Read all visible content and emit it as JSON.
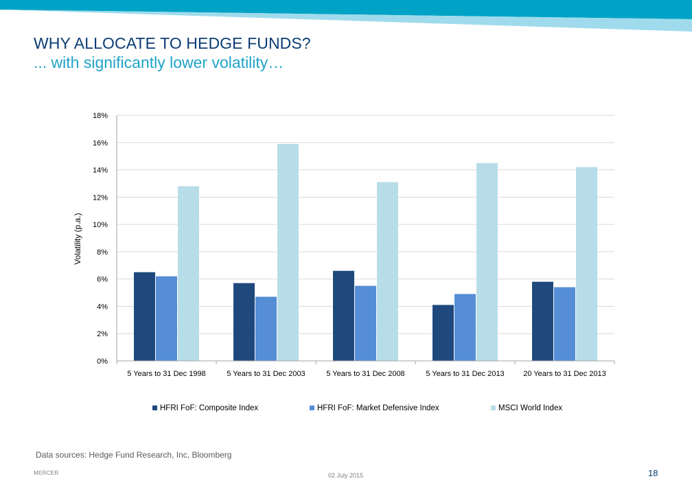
{
  "slide": {
    "title": "WHY ALLOCATE TO HEDGE FUNDS?",
    "subtitle": "... with significantly lower volatility…",
    "source": "Data sources: Hedge Fund Research, Inc, Bloomberg",
    "brand": "MERCER",
    "date": "02 July 2015",
    "page": "18"
  },
  "colors": {
    "band_dark": "#00a3c6",
    "band_light": "#9fdbec",
    "title": "#0b3c74",
    "subtitle": "#1fa3c8"
  },
  "chart_data": {
    "type": "bar",
    "title": "",
    "xlabel": "",
    "ylabel": "Volatility (p.a.)",
    "ylim": [
      0,
      18
    ],
    "yticks": [
      "0%",
      "2%",
      "4%",
      "6%",
      "8%",
      "10%",
      "12%",
      "14%",
      "16%",
      "18%"
    ],
    "grid": true,
    "legend_position": "bottom",
    "categories": [
      "5 Years to 31 Dec 1998",
      "5 Years to 31 Dec 2003",
      "5 Years to 31 Dec 2008",
      "5 Years to 31 Dec 2013",
      "20 Years to 31 Dec 2013"
    ],
    "series": [
      {
        "name": "HFRI FoF: Composite Index",
        "color": "#1f497d",
        "values": [
          6.5,
          5.7,
          6.6,
          4.1,
          5.8
        ]
      },
      {
        "name": "HFRI FoF: Market Defensive Index",
        "color": "#558ed5",
        "values": [
          6.2,
          4.7,
          5.5,
          4.9,
          5.4
        ]
      },
      {
        "name": "MSCI World Index",
        "color": "#b7dde8",
        "values": [
          12.8,
          15.9,
          13.1,
          14.5,
          14.2
        ]
      }
    ]
  }
}
